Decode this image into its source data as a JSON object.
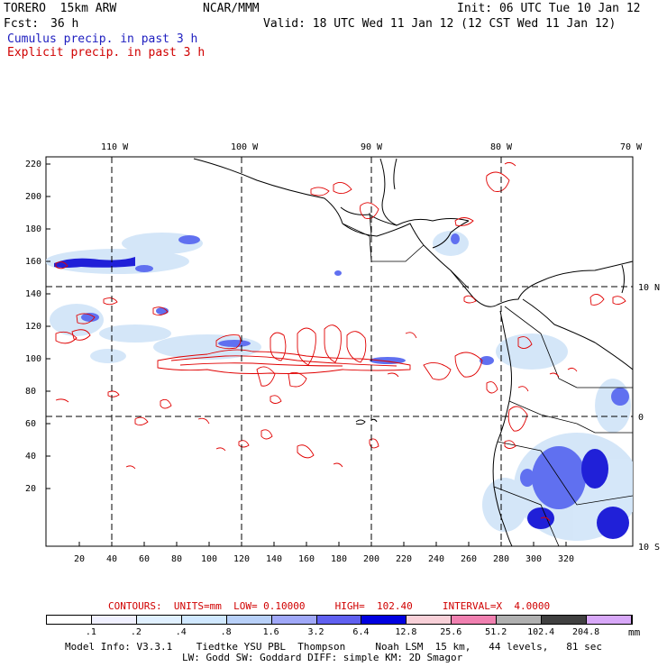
{
  "header": {
    "model": "TORERO  15km ARW",
    "org": "NCAR/MMM",
    "init": "Init: 06 UTC Tue 10 Jan 12",
    "fcst_label": "Fcst:",
    "fcst_value": "36 h",
    "valid": "Valid: 18 UTC Wed 11 Jan 12 (12 CST Wed 11 Jan 12)",
    "line_cumulus": "Cumulus precip. in past 3 h",
    "line_explicit": "Explicit precip. in past 3 h"
  },
  "map": {
    "lon_labels": [
      "110 W",
      "100 W",
      "90 W",
      "80 W",
      "70 W"
    ],
    "lat_labels": [
      "10 N",
      "0",
      "10 S"
    ],
    "y_ticks": [
      "220",
      "200",
      "180",
      "160",
      "140",
      "120",
      "100",
      "80",
      "60",
      "40",
      "20"
    ],
    "x_ticks": [
      "20",
      "40",
      "60",
      "80",
      "100",
      "120",
      "140",
      "160",
      "180",
      "200",
      "220",
      "240",
      "260",
      "280",
      "300",
      "320"
    ],
    "colors": {
      "cumulus_light": "#c8dcf8",
      "cumulus_mid": "#6070f0",
      "cumulus_dark": "#0000d8",
      "explicit_contour": "#e00000",
      "coastline": "#000000"
    }
  },
  "contours_note": "CONTOURS:  UNITS=mm  LOW= 0.10000     HIGH=  102.40     INTERVAL=X  4.0000",
  "legend": {
    "labels": [
      ".1",
      ".2",
      ".4",
      ".8",
      "1.6",
      "3.2",
      "6.4",
      "12.8",
      "25.6",
      "51.2",
      "102.4",
      "204.8"
    ],
    "units": "mm",
    "colors": [
      "#ffffff",
      "#f0f0ff",
      "#e0f0ff",
      "#d0e8ff",
      "#b8d0f8",
      "#a0a8f8",
      "#6060f0",
      "#0000e0",
      "#f8d0d8",
      "#f080b0",
      "#b0b0b0",
      "#404040",
      "#d8a8f8"
    ]
  },
  "footer": {
    "line1": "Model Info: V3.3.1    Tiedtke YSU PBL  Thompson     Noah LSM  15 km,   44 levels,   81 sec",
    "line2": "LW: Godd SW: Goddard DIFF: simple KM: 2D Smagor"
  }
}
